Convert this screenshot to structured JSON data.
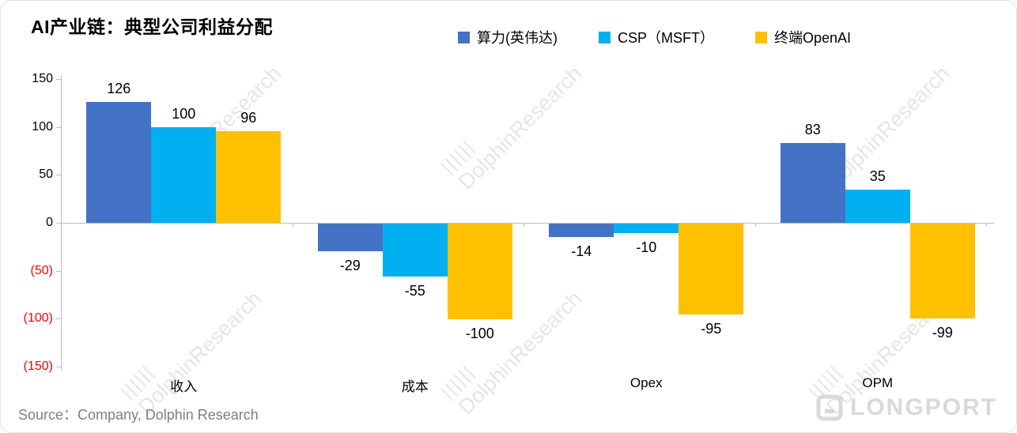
{
  "title": "AI产业链：典型公司利益分配",
  "source": "Source：Company, Dolphin Research",
  "watermark": "DolphinResearch",
  "logo_text": "LONGPORT",
  "legend": [
    {
      "label": "算力(英伟达)",
      "color": "#4472C4"
    },
    {
      "label": "CSP（MSFT）",
      "color": "#00B0F0"
    },
    {
      "label": "终端OpenAI",
      "color": "#FFC000"
    }
  ],
  "chart_data": {
    "type": "bar",
    "title": "AI产业链：典型公司利益分配",
    "categories": [
      "收入",
      "成本",
      "Opex",
      "OPM"
    ],
    "series": [
      {
        "name": "算力(英伟达)",
        "color": "#4472C4",
        "values": [
          126,
          -29,
          -14,
          83
        ]
      },
      {
        "name": "CSP（MSFT）",
        "color": "#00B0F0",
        "values": [
          100,
          -55,
          -10,
          35
        ]
      },
      {
        "name": "终端OpenAI",
        "color": "#FFC000",
        "values": [
          96,
          -100,
          -95,
          -99
        ]
      }
    ],
    "ylim": [
      -150,
      150
    ],
    "yticks": [
      {
        "value": 150,
        "label": "150",
        "color": "#000000"
      },
      {
        "value": 100,
        "label": "100",
        "color": "#000000"
      },
      {
        "value": 50,
        "label": "50",
        "color": "#000000"
      },
      {
        "value": 0,
        "label": "0",
        "color": "#000000"
      },
      {
        "value": -50,
        "label": "(50)",
        "color": "#FF0000"
      },
      {
        "value": -100,
        "label": "(100)",
        "color": "#FF0000"
      },
      {
        "value": -150,
        "label": "(150)",
        "color": "#FF0000"
      }
    ],
    "grid": false,
    "legend_position": "top",
    "xlabel": "",
    "ylabel": ""
  }
}
